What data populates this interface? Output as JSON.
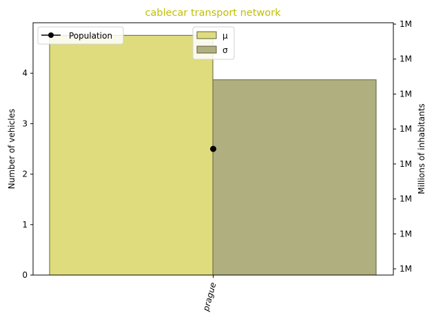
{
  "chart_data": {
    "type": "bar",
    "title": "cablecar transport network",
    "title_color": "#bfbf00",
    "categories": [
      "prague"
    ],
    "xlabel": "",
    "ylabel": "Number of vehicles",
    "y2label": "Millions of inhabitants",
    "ylim": [
      0,
      5
    ],
    "yticks": [
      0,
      1,
      2,
      3,
      4
    ],
    "y2_tick_labels": [
      "1M",
      "1M",
      "1M",
      "1M",
      "1M",
      "1M",
      "1M",
      "1M"
    ],
    "series": [
      {
        "name": "μ",
        "values": [
          4.75
        ],
        "color": "#dfdc7d"
      },
      {
        "name": "σ",
        "values": [
          3.87
        ],
        "color": "#b0af7f"
      }
    ],
    "line_series": {
      "name": "Population",
      "values": [
        2.5
      ],
      "axis": "left",
      "color": "#000000"
    },
    "legend_left_placement": "top-left",
    "legend_right_placement": "top-center",
    "grid": false
  }
}
